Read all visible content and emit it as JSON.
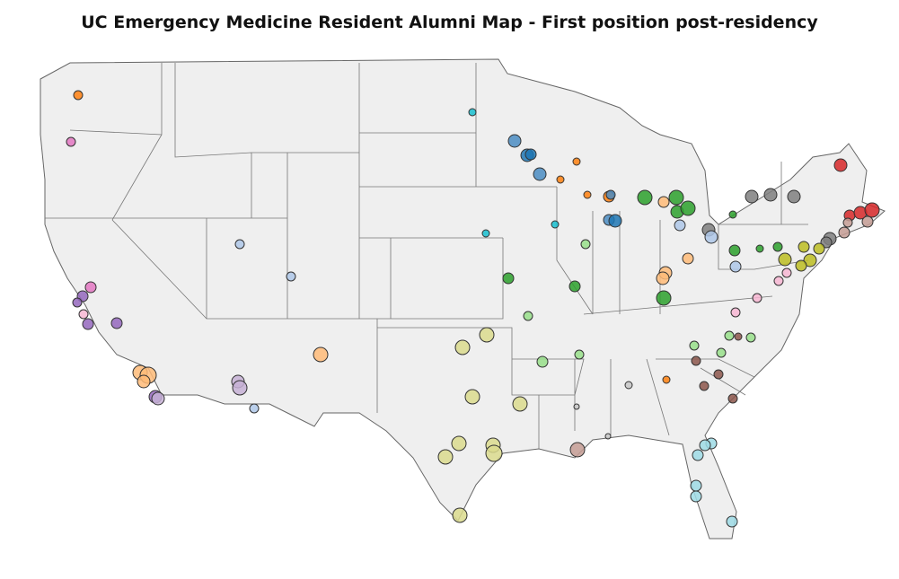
{
  "title": "UC Emergency Medicine Resident Alumni Map - First position post-residency"
}
